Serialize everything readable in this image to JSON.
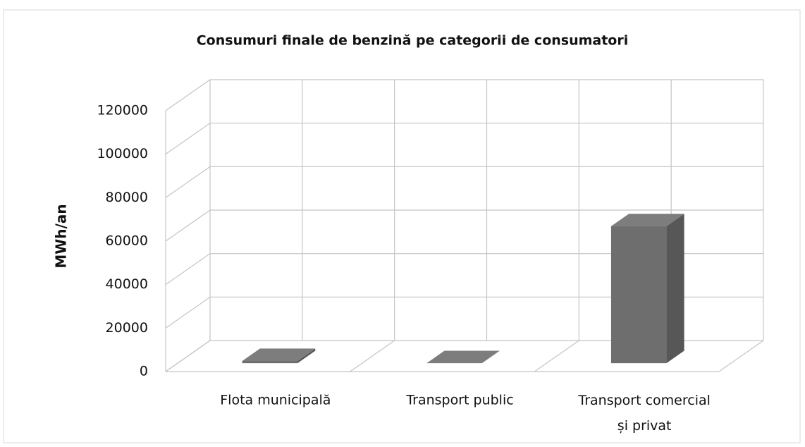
{
  "chart_data": {
    "type": "bar3d",
    "title": "Consumuri finale de benzină pe categorii de consumatori",
    "y_label": "MWh/an",
    "categories": [
      "Flota municipală",
      "Transport public",
      "Transport comercial și privat"
    ],
    "values": [
      1000,
      0,
      63000
    ],
    "color": "#6e6e6e",
    "ylim": [
      0,
      120000
    ],
    "yticks": [
      0,
      20000,
      40000,
      60000,
      80000,
      100000,
      120000
    ],
    "grid": true
  }
}
